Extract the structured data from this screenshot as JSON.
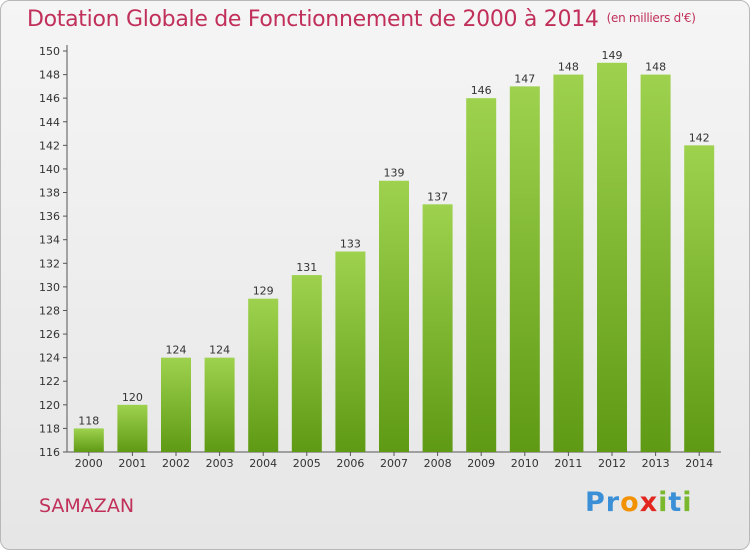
{
  "header": {
    "title": "Dotation Globale de Fonctionnement de 2000 à 2014",
    "unit": "(en milliers d'€)"
  },
  "footer": {
    "commune": "SAMAZAN",
    "logo_letters": [
      {
        "ch": "P",
        "color": "#3a8fd6"
      },
      {
        "ch": "r",
        "color": "#3a8fd6"
      },
      {
        "ch": "o",
        "color": "#f39200"
      },
      {
        "ch": "x",
        "color": "#e2251f"
      },
      {
        "ch": "i",
        "color": "#7ab82e"
      },
      {
        "ch": "t",
        "color": "#3a8fd6"
      },
      {
        "ch": "i",
        "color": "#7ab82e"
      }
    ]
  },
  "chart_data": {
    "type": "bar",
    "categories": [
      "2000",
      "2001",
      "2002",
      "2003",
      "2004",
      "2005",
      "2006",
      "2007",
      "2008",
      "2009",
      "2010",
      "2011",
      "2012",
      "2013",
      "2014"
    ],
    "values": [
      118,
      120,
      124,
      124,
      129,
      131,
      133,
      139,
      137,
      146,
      147,
      148,
      149,
      148,
      142
    ],
    "ylim": [
      116,
      150
    ],
    "ytick_step": 2,
    "grid": false,
    "bar_color_top": "#9ed24e",
    "bar_color_bottom": "#5f9a14"
  }
}
